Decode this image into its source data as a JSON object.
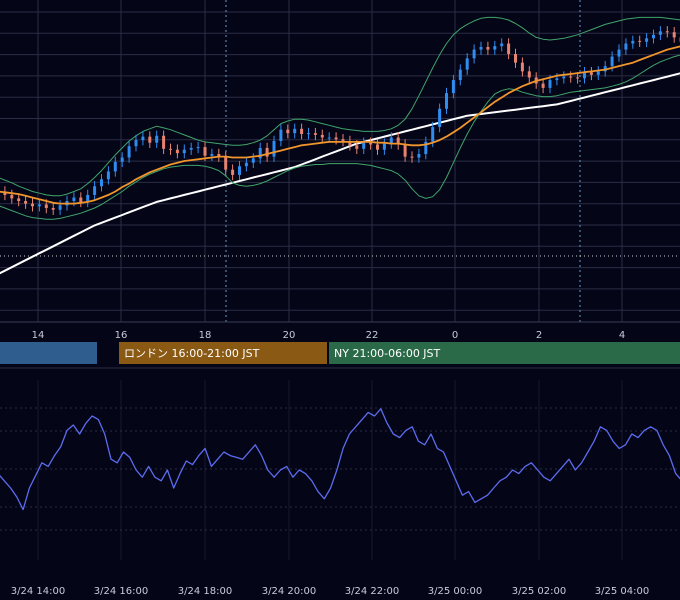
{
  "colors": {
    "background": "#050518",
    "grid": "#2a2d44",
    "up_candle": "#2f8cf0",
    "down_candle": "#e8836f",
    "bollinger": "#3fa56a",
    "ma_fast": "#f0962c",
    "ma_slow": "#ffffff",
    "oscillator": "#5b6cf0",
    "marker_line": "#6a9cc8",
    "session_asia": "#2e5d8e",
    "session_london": "#8a5a14",
    "session_ny": "#2a6a48"
  },
  "sessions": [
    {
      "label": "",
      "color": "#2e5d8e"
    },
    {
      "label": "ロンドン 16:00-21:00 JST",
      "color": "#8a5a14"
    },
    {
      "label": "NY 21:00-06:00 JST",
      "color": "#2a6a48"
    }
  ],
  "chart_data": [
    {
      "type": "candlestick",
      "title": "",
      "x_ticks": [
        "14",
        "16",
        "18",
        "20",
        "22",
        "0",
        "2",
        "4"
      ],
      "series": [
        {
          "name": "",
          "kind": "upper_band"
        },
        {
          "name": "",
          "kind": "lower_band"
        },
        {
          "name": "",
          "kind": "ma_fast"
        },
        {
          "name": "",
          "kind": "ma_slow"
        }
      ],
      "candles_close": [
        100.0,
        99.6,
        99.2,
        98.9,
        98.6,
        98.3,
        98.5,
        98.1,
        97.9,
        98.4,
        98.9,
        99.3,
        98.8,
        99.6,
        100.6,
        101.4,
        102.3,
        103.4,
        103.9,
        105.2,
        105.9,
        106.3,
        105.6,
        106.4,
        104.9,
        104.8,
        104.4,
        104.8,
        105.0,
        105.1,
        104.1,
        104.3,
        104.0,
        102.5,
        101.9,
        102.9,
        103.3,
        103.8,
        105.0,
        104.0,
        105.8,
        107.1,
        106.7,
        107.2,
        106.6,
        106.7,
        106.5,
        106.2,
        106.2,
        106.0,
        105.8,
        105.3,
        104.9,
        105.6,
        105.4,
        104.8,
        105.5,
        106.2,
        105.4,
        104.0,
        103.9,
        104.3,
        105.7,
        107.4,
        109.5,
        111.3,
        112.8,
        114.0,
        115.3,
        116.3,
        116.6,
        116.3,
        116.7,
        117.0,
        115.8,
        114.8,
        113.8,
        113.1,
        112.4,
        111.9,
        112.8,
        113.0,
        113.2,
        113.1,
        113.0,
        113.7,
        113.4,
        113.8,
        114.4,
        115.5,
        116.3,
        117.0,
        117.3,
        117.2,
        117.6,
        118.0,
        118.4,
        118.3,
        117.7,
        117.2,
        117.2
      ],
      "upper_band_values": [
        101.6,
        101.3,
        101.0,
        100.6,
        100.3,
        100.0,
        99.8,
        99.6,
        99.5,
        99.5,
        99.7,
        100.0,
        100.3,
        100.9,
        101.6,
        102.4,
        103.3,
        104.2,
        105.0,
        105.8,
        106.4,
        106.9,
        107.2,
        107.5,
        107.3,
        107.1,
        106.8,
        106.5,
        106.2,
        105.9,
        105.7,
        105.6,
        105.5,
        105.4,
        105.3,
        105.3,
        105.4,
        105.6,
        105.9,
        106.4,
        107.1,
        107.8,
        108.1,
        108.3,
        108.3,
        108.2,
        108.0,
        107.8,
        107.6,
        107.4,
        107.2,
        107.1,
        107.0,
        106.9,
        106.9,
        106.9,
        107.0,
        107.2,
        107.6,
        108.3,
        109.5,
        111.0,
        112.6,
        114.2,
        115.7,
        117.0,
        118.0,
        118.7,
        119.2,
        119.6,
        119.9,
        120.0,
        120.0,
        119.9,
        119.7,
        119.3,
        118.8,
        118.2,
        117.7,
        117.5,
        117.4,
        117.5,
        117.6,
        117.8,
        118.0,
        118.3,
        118.6,
        118.9,
        119.2,
        119.4,
        119.6,
        119.8,
        119.9,
        120.0,
        120.0,
        120.0,
        120.0,
        119.9,
        119.8,
        119.7,
        119.6
      ],
      "lower_band_values": [
        98.4,
        98.1,
        97.8,
        97.5,
        97.2,
        97.0,
        96.9,
        96.8,
        96.8,
        96.9,
        97.1,
        97.3,
        97.5,
        97.8,
        98.1,
        98.5,
        99.0,
        99.5,
        100.0,
        100.6,
        101.1,
        101.6,
        102.0,
        102.3,
        102.6,
        102.8,
        102.9,
        103.0,
        103.0,
        103.0,
        102.9,
        102.7,
        102.4,
        101.8,
        101.0,
        100.7,
        100.6,
        100.7,
        100.9,
        101.2,
        101.6,
        102.0,
        102.4,
        102.7,
        102.9,
        103.0,
        103.1,
        103.1,
        103.2,
        103.2,
        103.2,
        103.2,
        103.2,
        103.1,
        103.0,
        102.8,
        102.6,
        102.4,
        102.0,
        101.3,
        100.3,
        99.5,
        99.2,
        99.4,
        100.2,
        101.6,
        103.3,
        105.0,
        106.6,
        108.0,
        109.2,
        110.3,
        111.2,
        111.6,
        111.8,
        111.7,
        111.4,
        111.2,
        111.0,
        110.9,
        110.9,
        111.0,
        111.2,
        111.4,
        111.5,
        111.6,
        111.7,
        111.8,
        111.9,
        112.1,
        112.3,
        112.6,
        113.0,
        113.5,
        114.0,
        114.5,
        114.9,
        115.2,
        115.5,
        115.7,
        115.8
      ],
      "ma_fast_values": [
        100.0,
        99.9,
        99.8,
        99.7,
        99.5,
        99.3,
        99.1,
        98.9,
        98.7,
        98.6,
        98.6,
        98.6,
        98.7,
        98.8,
        99.0,
        99.3,
        99.6,
        100.0,
        100.5,
        100.9,
        101.4,
        101.8,
        102.2,
        102.5,
        102.8,
        103.1,
        103.3,
        103.5,
        103.6,
        103.7,
        103.8,
        103.9,
        104.0,
        104.0,
        103.9,
        103.9,
        103.9,
        104.0,
        104.1,
        104.3,
        104.5,
        104.7,
        104.9,
        105.1,
        105.3,
        105.4,
        105.5,
        105.6,
        105.7,
        105.7,
        105.7,
        105.7,
        105.7,
        105.7,
        105.7,
        105.6,
        105.6,
        105.5,
        105.5,
        105.4,
        105.3,
        105.3,
        105.4,
        105.6,
        105.9,
        106.3,
        106.8,
        107.3,
        107.9,
        108.5,
        109.1,
        109.7,
        110.3,
        110.8,
        111.3,
        111.7,
        112.1,
        112.4,
        112.7,
        112.9,
        113.1,
        113.3,
        113.4,
        113.5,
        113.6,
        113.7,
        113.8,
        113.9,
        114.0,
        114.2,
        114.4,
        114.6,
        114.8,
        115.1,
        115.4,
        115.7,
        116.0,
        116.3,
        116.5,
        116.7,
        116.9
      ],
      "ma_slow_values": [
        90.5,
        90.9,
        91.3,
        91.7,
        92.1,
        92.5,
        92.9,
        93.3,
        93.7,
        94.1,
        94.5,
        94.9,
        95.3,
        95.7,
        96.1,
        96.4,
        96.7,
        97.0,
        97.3,
        97.6,
        97.9,
        98.2,
        98.5,
        98.8,
        99.0,
        99.2,
        99.4,
        99.6,
        99.8,
        100.0,
        100.2,
        100.4,
        100.6,
        100.8,
        101.0,
        101.2,
        101.4,
        101.6,
        101.8,
        102.0,
        102.2,
        102.4,
        102.6,
        102.8,
        103.1,
        103.4,
        103.7,
        104.0,
        104.3,
        104.6,
        104.9,
        105.2,
        105.5,
        105.7,
        105.9,
        106.1,
        106.3,
        106.5,
        106.7,
        106.9,
        107.1,
        107.3,
        107.5,
        107.7,
        107.9,
        108.1,
        108.3,
        108.5,
        108.7,
        108.8,
        108.9,
        109.0,
        109.1,
        109.2,
        109.3,
        109.4,
        109.5,
        109.6,
        109.7,
        109.8,
        109.9,
        110.0,
        110.2,
        110.4,
        110.6,
        110.8,
        111.0,
        111.2,
        111.4,
        111.6,
        111.8,
        112.0,
        112.2,
        112.4,
        112.6,
        112.8,
        113.0,
        113.2,
        113.4,
        113.6,
        113.8
      ],
      "y_range": [
        85,
        122
      ],
      "grid": true
    },
    {
      "type": "line",
      "title": "",
      "x_ticks": [
        "3/24 14:00",
        "3/24 16:00",
        "3/24 18:00",
        "3/24 20:00",
        "3/24 22:00",
        "3/25 00:00",
        "3/25 02:00",
        "3/25 04:00"
      ],
      "series": [
        {
          "name": "",
          "values": [
            48,
            44,
            40,
            35,
            28,
            40,
            47,
            54,
            52,
            58,
            63,
            72,
            75,
            70,
            76,
            80,
            78,
            70,
            56,
            54,
            60,
            57,
            50,
            46,
            52,
            46,
            44,
            50,
            40,
            48,
            55,
            53,
            58,
            62,
            52,
            56,
            60,
            58,
            57,
            56,
            60,
            64,
            58,
            50,
            46,
            50,
            52,
            46,
            50,
            48,
            44,
            38,
            34,
            40,
            50,
            62,
            70,
            74,
            78,
            82,
            80,
            84,
            76,
            70,
            68,
            72,
            74,
            66,
            64,
            70,
            62,
            60,
            52,
            44,
            36,
            38,
            32,
            34,
            36,
            40,
            44,
            46,
            50,
            48,
            52,
            54,
            50,
            46,
            44,
            48,
            52,
            56,
            50,
            54,
            60,
            66,
            74,
            72,
            66,
            62,
            64,
            70,
            68,
            72,
            74,
            72,
            64,
            58,
            48,
            44
          ]
        }
      ],
      "y_range": [
        0,
        100
      ],
      "grid": true
    }
  ]
}
